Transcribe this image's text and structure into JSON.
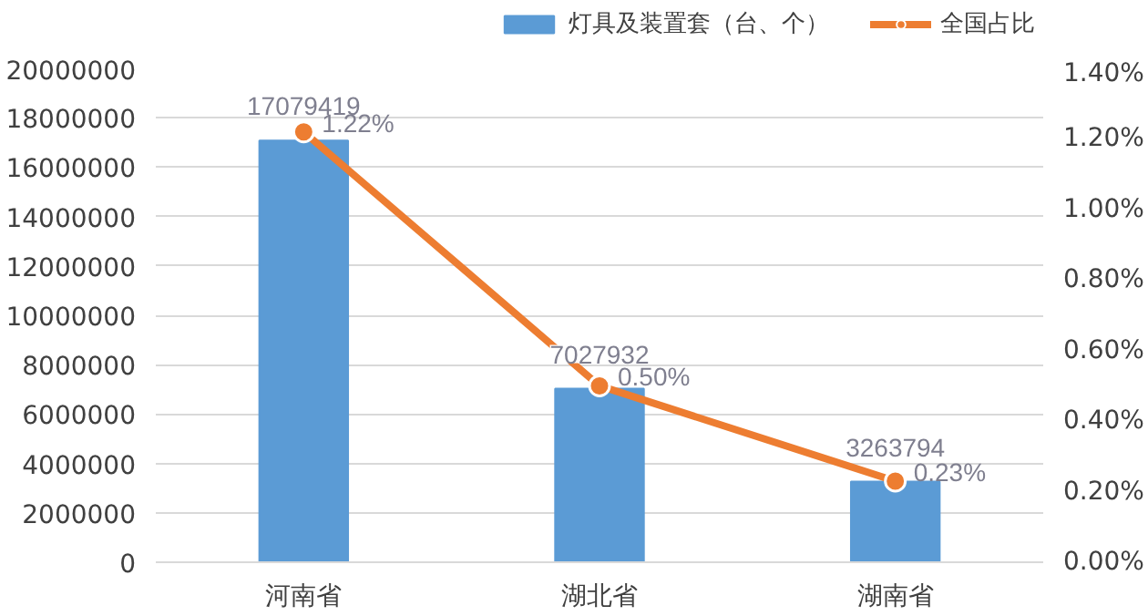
{
  "chart_data": {
    "type": "bar",
    "categories": [
      "河南省",
      "湖北省",
      "湖南省"
    ],
    "series": [
      {
        "name": "灯具及装置套（台、个）",
        "color": "#5b9bd5",
        "values": [
          17079419,
          7027932,
          3263794
        ],
        "value_labels": [
          "17079419",
          "7027932",
          "3263794"
        ]
      },
      {
        "name": "全国占比",
        "type": "line",
        "axis": "y2",
        "color": "#ed7d31",
        "values": [
          1.22,
          0.5,
          0.23
        ],
        "value_labels": [
          "1.22%",
          "0.50%",
          "0.23%"
        ],
        "marker": "circle"
      }
    ],
    "ylim": [
      0,
      20000000
    ],
    "yticks": [
      0,
      2000000,
      4000000,
      6000000,
      8000000,
      10000000,
      12000000,
      14000000,
      16000000,
      18000000,
      20000000
    ],
    "y2lim": [
      0,
      1.4
    ],
    "y2ticks": [
      {
        "value": 0,
        "label": "0.00%"
      },
      {
        "value": 0.2,
        "label": "0.20%"
      },
      {
        "value": 0.4,
        "label": "0.40%"
      },
      {
        "value": 0.6,
        "label": "0.60%"
      },
      {
        "value": 0.8,
        "label": "0.80%"
      },
      {
        "value": 1.0,
        "label": "1.00%"
      },
      {
        "value": 1.2,
        "label": "1.20%"
      },
      {
        "value": 1.4,
        "label": "1.40%"
      }
    ],
    "grid": "y",
    "legend": "top right"
  }
}
